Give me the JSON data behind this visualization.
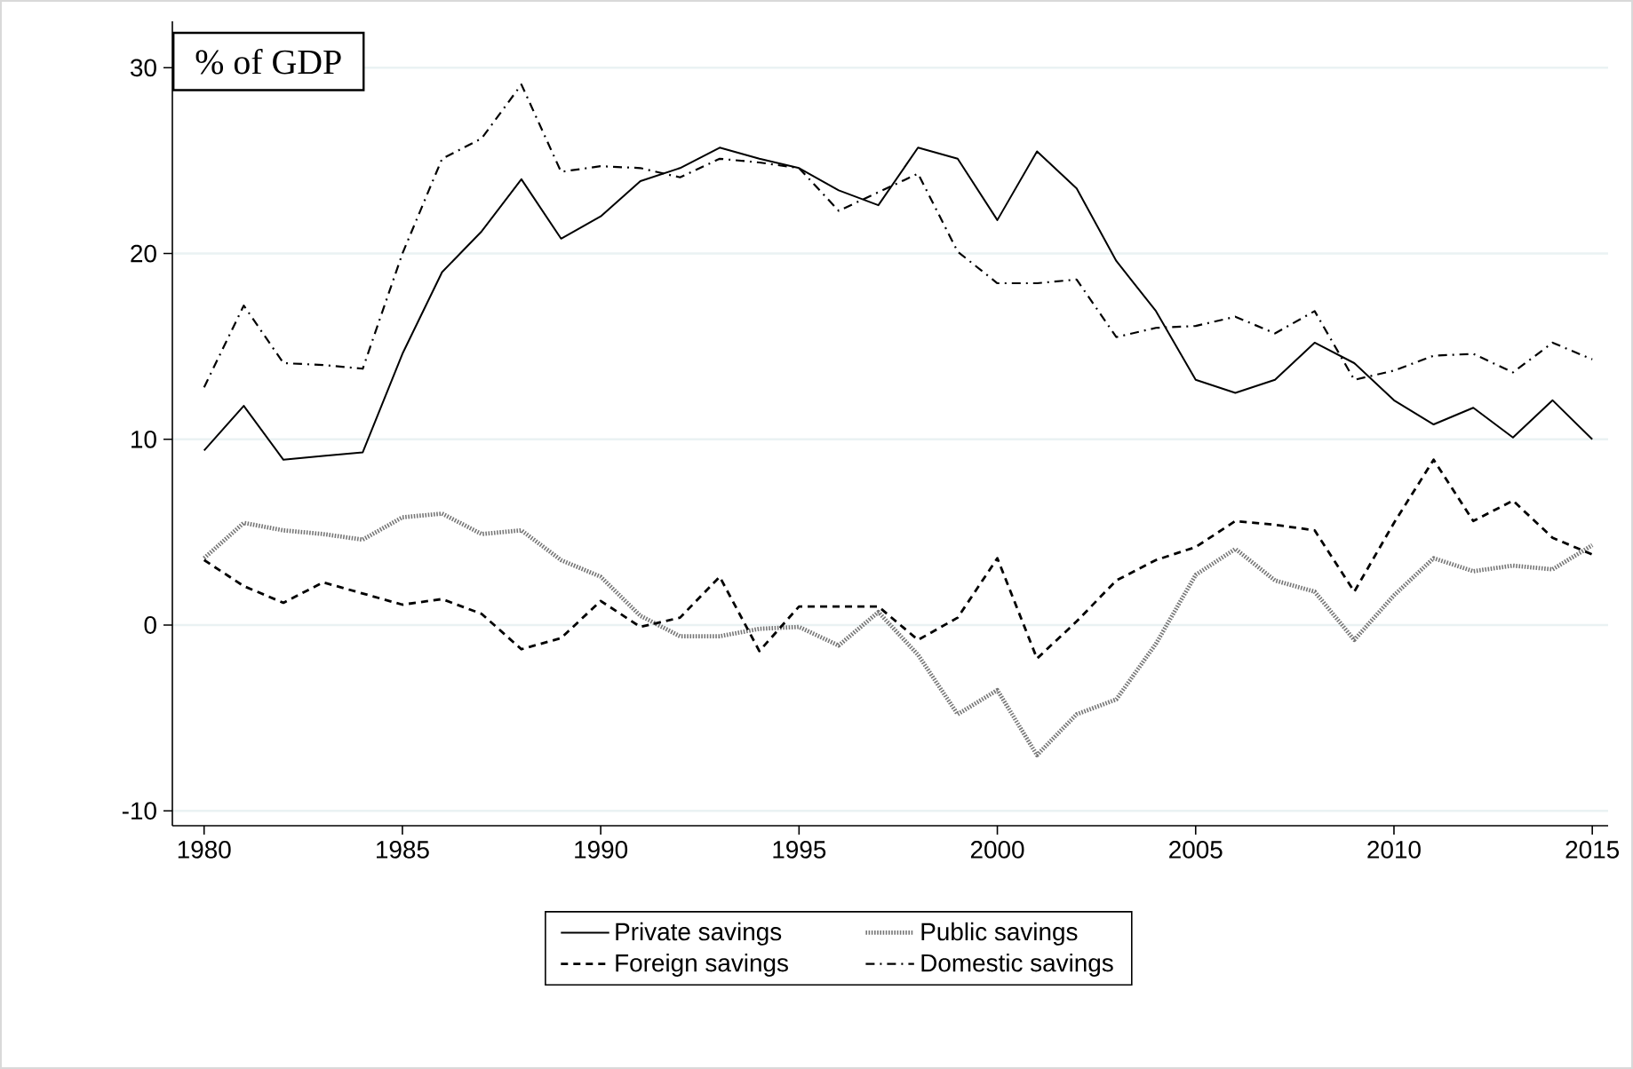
{
  "chart_data": {
    "type": "line",
    "title": "% of GDP",
    "x": [
      1980,
      1981,
      1982,
      1983,
      1984,
      1985,
      1986,
      1987,
      1988,
      1989,
      1990,
      1991,
      1992,
      1993,
      1994,
      1995,
      1996,
      1997,
      1998,
      1999,
      2000,
      2001,
      2002,
      2003,
      2004,
      2005,
      2006,
      2007,
      2008,
      2009,
      2010,
      2011,
      2012,
      2013,
      2014,
      2015
    ],
    "series": [
      {
        "name": "Private savings",
        "color": "#000000",
        "line_style": "solid",
        "values": [
          9.4,
          11.8,
          8.9,
          9.1,
          9.3,
          14.6,
          19.0,
          21.2,
          24.0,
          20.8,
          22.0,
          23.9,
          24.6,
          25.7,
          25.1,
          24.6,
          23.4,
          22.6,
          25.7,
          25.1,
          21.8,
          25.5,
          23.5,
          19.6,
          16.9,
          13.2,
          12.5,
          13.2,
          15.2,
          14.1,
          12.1,
          10.8,
          11.7,
          10.1,
          12.1,
          10.0
        ]
      },
      {
        "name": "Public savings",
        "color": "#777777",
        "line_style": "dotted",
        "values": [
          3.6,
          5.5,
          5.1,
          4.9,
          4.6,
          5.8,
          6.0,
          4.9,
          5.1,
          3.5,
          2.6,
          0.5,
          -0.6,
          -0.6,
          -0.2,
          -0.1,
          -1.1,
          0.7,
          -1.6,
          -4.8,
          -3.5,
          -7.0,
          -4.8,
          -4.0,
          -1.0,
          2.7,
          4.1,
          2.4,
          1.8,
          -0.8,
          1.6,
          3.6,
          2.9,
          3.2,
          3.0,
          4.3
        ]
      },
      {
        "name": "Foreign savings",
        "color": "#000000",
        "line_style": "dashed",
        "values": [
          3.5,
          2.1,
          1.2,
          2.3,
          1.7,
          1.1,
          1.4,
          0.6,
          -1.3,
          -0.7,
          1.3,
          -0.1,
          0.4,
          2.6,
          -1.4,
          1.0,
          1.0,
          1.0,
          -0.8,
          0.4,
          3.6,
          -1.8,
          0.2,
          2.4,
          3.5,
          4.2,
          5.6,
          5.4,
          5.1,
          1.8,
          5.5,
          8.9,
          5.6,
          6.7,
          4.7,
          3.8
        ]
      },
      {
        "name": "Domestic savings",
        "color": "#000000",
        "line_style": "dashdot",
        "values": [
          12.8,
          17.2,
          14.1,
          14.0,
          13.8,
          20.0,
          25.1,
          26.2,
          29.1,
          24.4,
          24.7,
          24.6,
          24.1,
          25.1,
          24.9,
          24.6,
          22.3,
          23.3,
          24.3,
          20.1,
          18.4,
          18.4,
          18.6,
          15.5,
          16.0,
          16.1,
          16.6,
          15.7,
          16.9,
          13.2,
          13.7,
          14.5,
          14.6,
          13.6,
          15.2,
          14.3
        ]
      }
    ],
    "xlim": [
      1979.2,
      2015.4
    ],
    "xticks": [
      1980,
      1985,
      1990,
      1995,
      2000,
      2005,
      2010,
      2015
    ],
    "ylim": [
      -10.8,
      32.5
    ],
    "yticks": [
      -10,
      0,
      10,
      20,
      30
    ],
    "grid": "y",
    "legend": "bottom",
    "marker": "none"
  }
}
